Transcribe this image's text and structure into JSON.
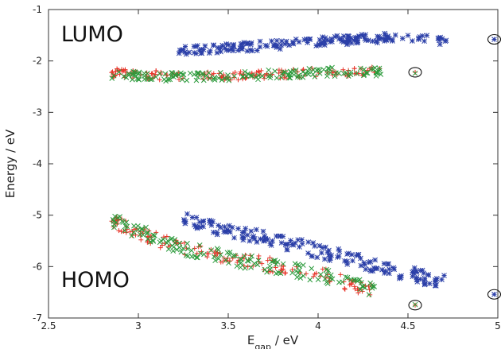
{
  "chart_data": {
    "type": "scatter",
    "title": "",
    "xlabel_main": "E",
    "xlabel_sub": "gap",
    "xlabel_rest": " / eV",
    "ylabel": "Energy / eV",
    "xlim": [
      2.5,
      5.0
    ],
    "ylim": [
      -7,
      -1
    ],
    "xticks": [
      2.5,
      3,
      3.5,
      4,
      4.5,
      5
    ],
    "xtick_labels": [
      "2.5",
      "3",
      "3.5",
      "4",
      "4.5",
      "5"
    ],
    "yticks": [
      -7,
      -6,
      -5,
      -4,
      -3,
      -2,
      -1
    ],
    "ytick_labels": [
      "-7",
      "-6",
      "-5",
      "-4",
      "-3",
      "-2",
      "-1"
    ],
    "grid": false,
    "annotations": [
      {
        "text": "LUMO",
        "x": 2.57,
        "y": -1.62
      },
      {
        "text": "HOMO",
        "x": 2.57,
        "y": -6.4
      }
    ],
    "series": [
      {
        "marker": "asterisk",
        "color": "#2b3fa8",
        "lumo_trend": [
          [
            3.22,
            -1.82
          ],
          [
            3.5,
            -1.74
          ],
          [
            3.8,
            -1.68
          ],
          [
            4.1,
            -1.6
          ],
          [
            4.4,
            -1.55
          ],
          [
            4.72,
            -1.6
          ]
        ],
        "homo_trend": [
          [
            3.25,
            -5.05
          ],
          [
            3.5,
            -5.3
          ],
          [
            3.8,
            -5.52
          ],
          [
            4.1,
            -5.78
          ],
          [
            4.4,
            -6.05
          ],
          [
            4.72,
            -6.32
          ]
        ],
        "points": [
          [
            4.98,
            -1.58
          ],
          [
            4.98,
            -6.54
          ]
        ]
      },
      {
        "marker": "plus",
        "color": "#e8352a",
        "lumo_trend": [
          [
            2.85,
            -2.22
          ],
          [
            3.2,
            -2.3
          ],
          [
            3.6,
            -2.28
          ],
          [
            4.0,
            -2.22
          ],
          [
            4.35,
            -2.2
          ]
        ],
        "homo_trend": [
          [
            2.85,
            -5.12
          ],
          [
            3.2,
            -5.6
          ],
          [
            3.6,
            -5.88
          ],
          [
            4.0,
            -6.12
          ],
          [
            4.35,
            -6.55
          ]
        ],
        "points": [
          [
            4.54,
            -2.22
          ],
          [
            4.54,
            -6.75
          ]
        ]
      },
      {
        "marker": "cross",
        "color": "#2a9a3a",
        "lumo_trend": [
          [
            2.85,
            -2.25
          ],
          [
            3.2,
            -2.32
          ],
          [
            3.6,
            -2.28
          ],
          [
            4.0,
            -2.22
          ],
          [
            4.35,
            -2.2
          ]
        ],
        "homo_trend": [
          [
            2.85,
            -5.1
          ],
          [
            3.2,
            -5.6
          ],
          [
            3.6,
            -5.9
          ],
          [
            4.0,
            -6.15
          ],
          [
            4.35,
            -6.5
          ]
        ],
        "points": [
          [
            4.54,
            -2.24
          ],
          [
            4.54,
            -6.74
          ]
        ]
      }
    ],
    "circled_points": [
      [
        4.54,
        -2.22
      ],
      [
        4.54,
        -6.75
      ],
      [
        4.98,
        -1.58
      ],
      [
        4.98,
        -6.54
      ]
    ]
  }
}
